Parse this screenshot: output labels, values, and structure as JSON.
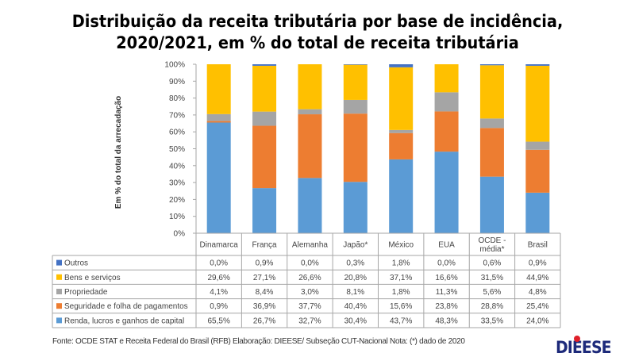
{
  "title_lines": [
    "Distribuição da receita tributária por base de incidência,",
    "2020/2021, em % do total de receita tributária"
  ],
  "source_note": "Fonte: OCDE STAT e Receita Federal do Brasil (RFB) Elaboração: DIEESE/ Subseção CUT-Nacional Nota: (*) dado de 2020",
  "logo_text": "DIEESE",
  "chart_data": {
    "type": "bar",
    "stacked": true,
    "title": "Distribuição da receita tributária por base de incidência, 2020/2021, em % do total de receita tributária",
    "xlabel": "",
    "ylabel": "Em % do total da arrecadação",
    "ylim": [
      0,
      100
    ],
    "yticks": [
      "0%",
      "10%",
      "20%",
      "30%",
      "40%",
      "50%",
      "60%",
      "70%",
      "80%",
      "90%",
      "100%"
    ],
    "categories": [
      "Dinamarca",
      "França",
      "Alemanha",
      "Japão*",
      "México",
      "EUA",
      "OCDE - média*",
      "Brasil"
    ],
    "category_lines": [
      [
        "Dinamarca"
      ],
      [
        "França"
      ],
      [
        "Alemanha"
      ],
      [
        "Japão*"
      ],
      [
        "México"
      ],
      [
        "EUA"
      ],
      [
        "OCDE -",
        "média*"
      ],
      [
        "Brasil"
      ]
    ],
    "grid": false,
    "legend": "table-below",
    "series": [
      {
        "name": "Renda, lucros e ganhos de capital",
        "color": "#5b9bd5",
        "values": [
          65.5,
          26.7,
          32.7,
          30.4,
          43.7,
          48.3,
          33.5,
          24.0
        ],
        "labels": [
          "65,5%",
          "26,7%",
          "32,7%",
          "30,4%",
          "43,7%",
          "48,3%",
          "33,5%",
          "24,0%"
        ]
      },
      {
        "name": "Seguridade e folha de pagamentos",
        "color": "#ed7d31",
        "values": [
          0.9,
          36.9,
          37.7,
          40.4,
          15.6,
          23.8,
          28.8,
          25.4
        ],
        "labels": [
          "0,9%",
          "36,9%",
          "37,7%",
          "40,4%",
          "15,6%",
          "23,8%",
          "28,8%",
          "25,4%"
        ]
      },
      {
        "name": "Propriedade",
        "color": "#a5a5a5",
        "values": [
          4.1,
          8.4,
          3.0,
          8.1,
          1.8,
          11.3,
          5.6,
          4.8
        ],
        "labels": [
          "4,1%",
          "8,4%",
          "3,0%",
          "8,1%",
          "1,8%",
          "11,3%",
          "5,6%",
          "4,8%"
        ]
      },
      {
        "name": "Bens e serviços",
        "color": "#ffc000",
        "values": [
          29.6,
          27.1,
          26.6,
          20.8,
          37.1,
          16.6,
          31.5,
          44.9
        ],
        "labels": [
          "29,6%",
          "27,1%",
          "26,6%",
          "20,8%",
          "37,1%",
          "16,6%",
          "31,5%",
          "44,9%"
        ]
      },
      {
        "name": "Outros",
        "color": "#4472c4",
        "values": [
          0.0,
          0.9,
          0.0,
          0.3,
          1.8,
          0.0,
          0.6,
          0.9
        ],
        "labels": [
          "0,0%",
          "0,9%",
          "0,0%",
          "0,3%",
          "1,8%",
          "0,0%",
          "0,6%",
          "0,9%"
        ]
      }
    ],
    "table_row_order": [
      "Outros",
      "Bens e serviços",
      "Propriedade",
      "Seguridade e folha de pagamentos",
      "Renda, lucros e ganhos de capital"
    ]
  }
}
